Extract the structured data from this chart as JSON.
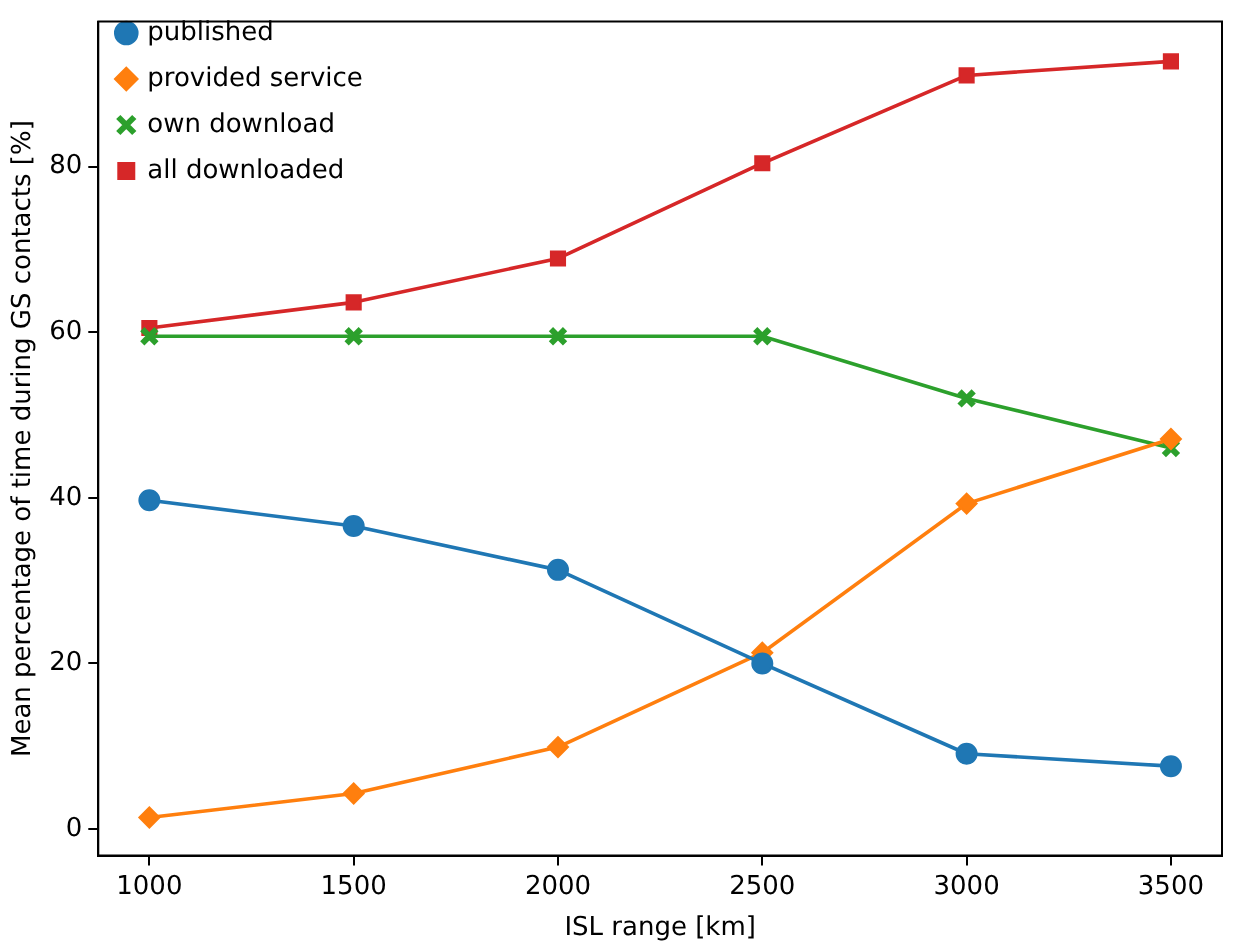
{
  "chart_data": {
    "type": "line",
    "xlabel": "ISL range [km]",
    "ylabel": "Mean percentage of time during GS contacts [%]",
    "x": [
      1000,
      1500,
      2000,
      2500,
      3000,
      3500
    ],
    "series": [
      {
        "name": "published",
        "color": "#1f77b4",
        "marker": "circle",
        "values": [
          39.7,
          36.6,
          31.3,
          20,
          9.1,
          7.6
        ]
      },
      {
        "name": "provided service",
        "color": "#ff7f0e",
        "marker": "diamond",
        "values": [
          1.4,
          4.3,
          9.9,
          21.3,
          39.3,
          47.1
        ]
      },
      {
        "name": "own download",
        "color": "#2ca02c",
        "marker": "cross",
        "values": [
          59.5,
          59.5,
          59.5,
          59.5,
          52,
          46
        ]
      },
      {
        "name": "all downloaded",
        "color": "#d62728",
        "marker": "square",
        "values": [
          60.5,
          63.6,
          68.9,
          80.4,
          91,
          92.7
        ]
      }
    ],
    "xlim": [
      875,
      3625
    ],
    "xticks": [
      1000,
      1500,
      2000,
      2500,
      3000,
      3500
    ],
    "ylim": [
      -3.2,
      97.5
    ],
    "yticks": [
      0,
      20,
      40,
      60,
      80
    ],
    "legend": "top left",
    "grid": false,
    "line_style": "solid"
  }
}
